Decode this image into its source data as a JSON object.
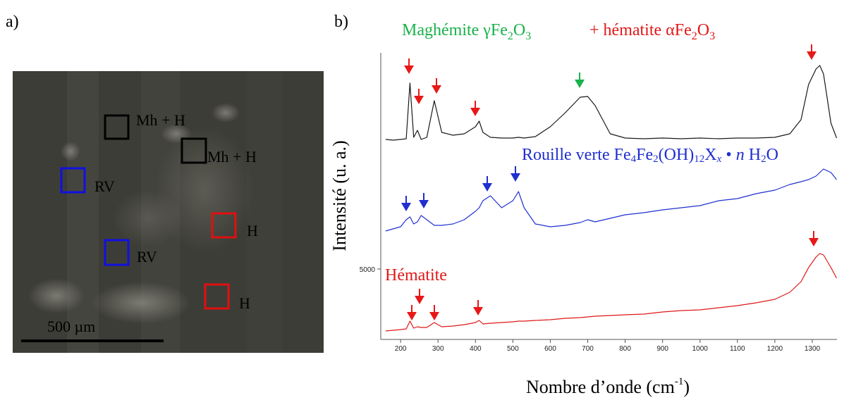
{
  "panel_a": {
    "label": "a)",
    "boxes": [
      {
        "label": "Mh + H"
      },
      {
        "label": "Mh + H"
      },
      {
        "label": "RV"
      },
      {
        "label": "RV"
      },
      {
        "label": "H"
      },
      {
        "label": "H"
      }
    ],
    "scale_bar": "500 µm"
  },
  "chart_data": {
    "type": "line",
    "panel_label": "b)",
    "annotations": {
      "maghemite": [
        "Maghémite γFe",
        "2",
        "O",
        "3"
      ],
      "hematite_mix": [
        "+ hématite αFe",
        "2",
        "O",
        "3"
      ],
      "rouille": [
        "Rouille verte Fe",
        "4",
        "Fe",
        "2",
        "(OH)",
        "12",
        "X",
        "x",
        "•",
        "n",
        "H",
        "2",
        "O"
      ],
      "hematite": "Hématite"
    },
    "x_label": [
      "Nombre d’onde (cm",
      "-1",
      ")"
    ],
    "y_label": "Intensité (u. a.)",
    "x": [
      160,
      180,
      200,
      215,
      225,
      235,
      245,
      255,
      270,
      290,
      310,
      340,
      370,
      400,
      410,
      420,
      440,
      470,
      500,
      515,
      530,
      560,
      600,
      640,
      680,
      700,
      720,
      760,
      800,
      850,
      900,
      950,
      1000,
      1050,
      1100,
      1150,
      1200,
      1240,
      1270,
      1290,
      1310,
      1320,
      1330,
      1350,
      1365
    ],
    "xlim": [
      147,
      1366
    ],
    "xticks": [
      200,
      300,
      400,
      500,
      600,
      700,
      800,
      900,
      1000,
      1100,
      1200,
      1300
    ],
    "ylim": [
      0,
      20350
    ],
    "yticks": [
      5000
    ],
    "series": [
      {
        "name": "Maghémite + hématite",
        "color": "#1a1a1a",
        "values": [
          14200,
          14150,
          14200,
          14250,
          18200,
          14350,
          14850,
          14200,
          14350,
          16950,
          14700,
          14500,
          14600,
          15100,
          15500,
          14700,
          14350,
          14300,
          14300,
          14350,
          14300,
          14400,
          15100,
          16100,
          17200,
          17250,
          16600,
          14600,
          14300,
          14250,
          14300,
          14250,
          14300,
          14250,
          14300,
          14300,
          14350,
          14600,
          15600,
          18100,
          19200,
          19450,
          18850,
          15350,
          14300
        ]
      },
      {
        "name": "Rouille verte",
        "color": "#1f2fd0",
        "values": [
          7700,
          7850,
          8000,
          8500,
          8700,
          8200,
          8350,
          8800,
          8500,
          8100,
          8100,
          8200,
          8500,
          9100,
          9350,
          9850,
          10200,
          9350,
          9850,
          10500,
          9350,
          8200,
          8000,
          8100,
          8300,
          8500,
          8350,
          8600,
          8850,
          9000,
          9200,
          9350,
          9500,
          9850,
          10000,
          10350,
          10600,
          11000,
          11200,
          11350,
          11600,
          11850,
          12100,
          11850,
          11350
        ]
      },
      {
        "name": "Hématite",
        "color": "#e01818",
        "values": [
          600,
          650,
          700,
          750,
          1300,
          800,
          900,
          850,
          850,
          1200,
          900,
          950,
          1050,
          1200,
          1350,
          1100,
          1150,
          1200,
          1250,
          1300,
          1300,
          1350,
          1400,
          1500,
          1550,
          1600,
          1650,
          1700,
          1750,
          1800,
          1950,
          2050,
          2100,
          2250,
          2400,
          2600,
          2850,
          3350,
          4100,
          5100,
          5850,
          6100,
          6000,
          5100,
          4350
        ]
      }
    ]
  }
}
